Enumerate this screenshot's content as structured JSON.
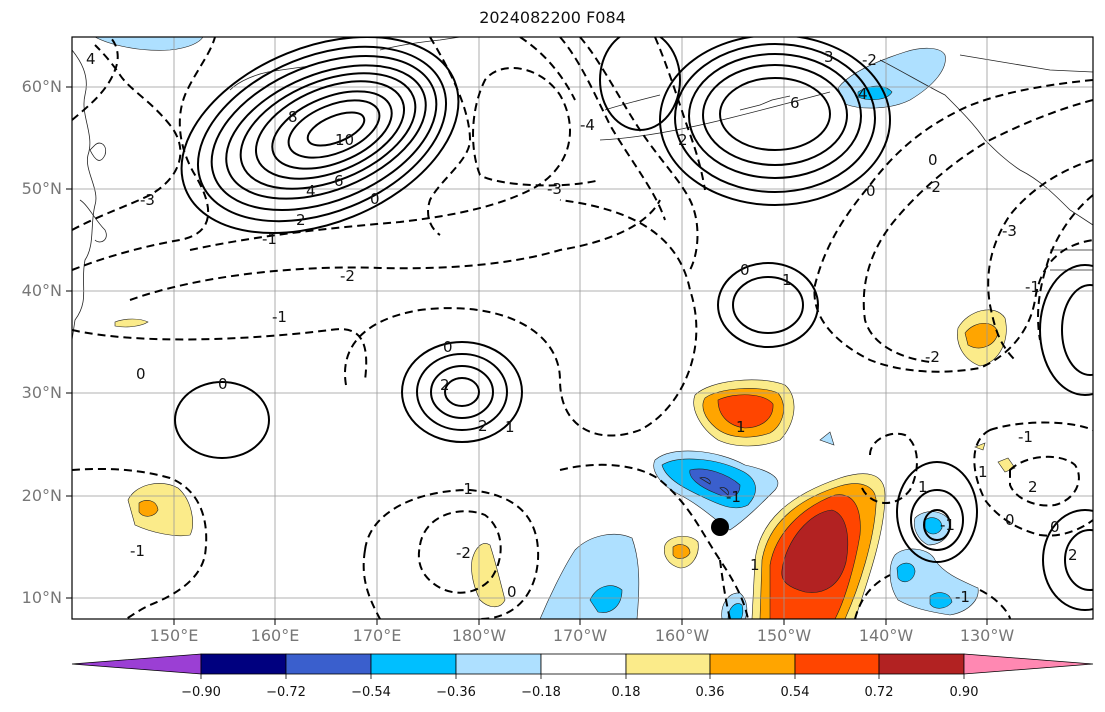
{
  "title": "2024082200 F084",
  "map": {
    "lat_labels": [
      "60°N",
      "50°N",
      "40°N",
      "30°N",
      "20°N",
      "10°N"
    ],
    "lon_labels": [
      "150°E",
      "160°E",
      "170°E",
      "180°W",
      "170°W",
      "160°W",
      "150°W",
      "140°W",
      "130°W"
    ],
    "extent": {
      "lon_min": 140,
      "lon_max": 243,
      "lat_min": 8,
      "lat_max": 65
    },
    "marker": {
      "name": "storm-position",
      "lon": 204.8,
      "lat": 17.2
    }
  },
  "contour_labels": {
    "l1": "4",
    "l2": "8",
    "l3": "10",
    "l4": "6",
    "l5": "4",
    "l6": "2",
    "l7": "0",
    "l8": "-1",
    "l9": "-3",
    "l10": "-4",
    "l11": "-3",
    "l12": "-2",
    "l13": "-1",
    "l14": "0",
    "l15": "0",
    "l16": "0",
    "l17": "2",
    "l18": "2",
    "l19": "1",
    "l20": "-1",
    "l21": "-2",
    "l22": "0",
    "l23": "-1",
    "l24": "1",
    "l25": "1",
    "l26": "-1",
    "l27": "2",
    "l28": "0",
    "l29": "1",
    "l30": "3",
    "l31": "-2",
    "l32": "6",
    "l33": "4",
    "l34": "0",
    "l35": "0",
    "l36": "-2",
    "l37": "-3",
    "l38": "-1",
    "l39": "1",
    "l40": "-1",
    "l41": "-2",
    "l42": "0",
    "l43": "2",
    "l44": "-1",
    "l45": "0",
    "l46": "-1",
    "l47": "1",
    "l48": "2"
  },
  "colorbar": {
    "colors": [
      "#9b3fd4",
      "#00007f",
      "#3a5fcd",
      "#00bfff",
      "#aee0ff",
      "#ffffff",
      "#fbeb8a",
      "#ffa500",
      "#ff4500",
      "#b22222",
      "#ff88b2"
    ],
    "tick_labels": [
      "−0.90",
      "−0.72",
      "−0.54",
      "−0.36",
      "−0.18",
      "0.18",
      "0.36",
      "0.54",
      "0.72",
      "0.90"
    ]
  }
}
